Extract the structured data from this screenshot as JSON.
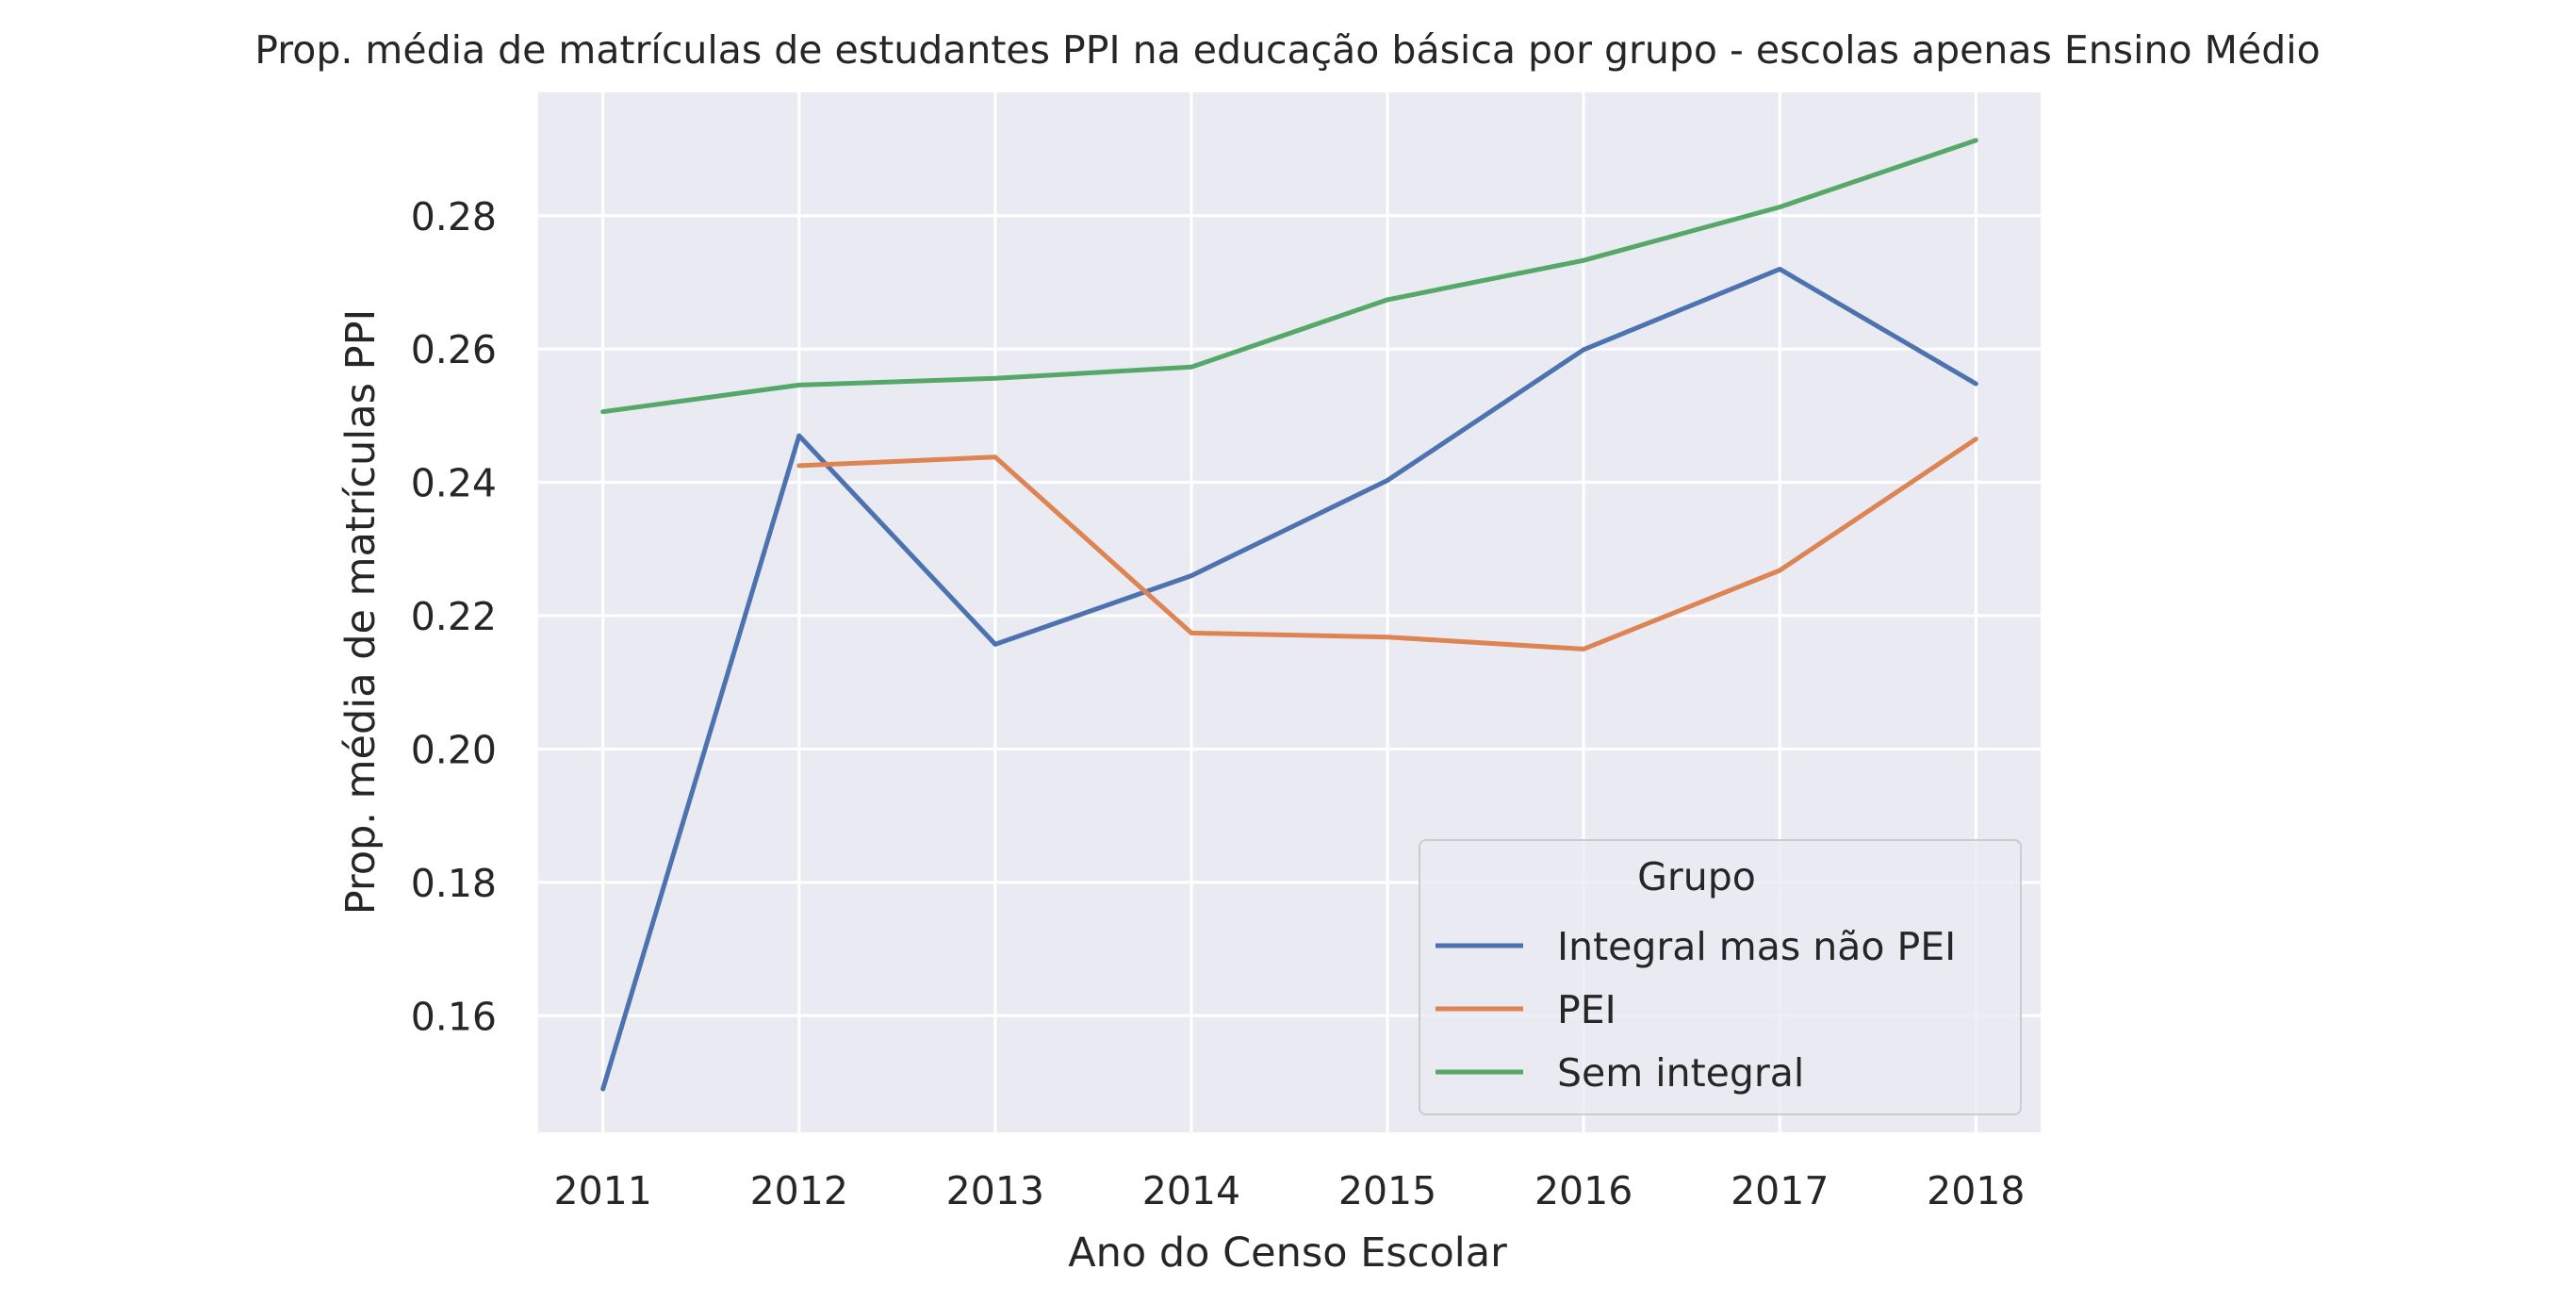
{
  "chart_data": {
    "type": "line",
    "title": "Prop. média de matrículas de estudantes PPI na educação básica por grupo - escolas apenas Ensino Médio",
    "xlabel": "Ano do Censo Escolar",
    "ylabel": "Prop. média de matrículas PPI",
    "x": [
      2011,
      2012,
      2013,
      2014,
      2015,
      2016,
      2017,
      2018
    ],
    "xlim": [
      2010.67,
      2018.33
    ],
    "ylim": [
      0.1425,
      0.2985
    ],
    "yticks": [
      0.16,
      0.18,
      0.2,
      0.22,
      0.24,
      0.26,
      0.28
    ],
    "ytick_labels": [
      "0.16",
      "0.18",
      "0.20",
      "0.22",
      "0.24",
      "0.26",
      "0.28"
    ],
    "grid": true,
    "background": "#eaeaf2",
    "legend": {
      "title": "Grupo",
      "placement": "lower-right"
    },
    "series": [
      {
        "name": "Integral mas não PEI",
        "color": "#4c72b0",
        "values": [
          0.149,
          0.247,
          0.2157,
          0.226,
          0.2403,
          0.2599,
          0.272,
          0.2548
        ]
      },
      {
        "name": "PEI",
        "color": "#dd8452",
        "values": [
          null,
          0.2425,
          0.2438,
          0.2174,
          0.2168,
          0.215,
          0.2268,
          0.2465
        ]
      },
      {
        "name": "Sem integral",
        "color": "#55a868",
        "values": [
          0.2506,
          0.2546,
          0.2556,
          0.2573,
          0.2674,
          0.2733,
          0.2813,
          0.2913
        ]
      }
    ]
  }
}
